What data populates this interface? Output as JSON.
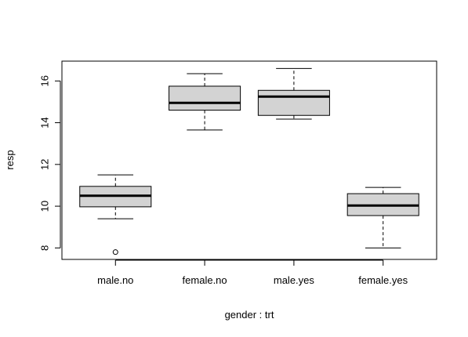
{
  "chart_data": {
    "type": "boxplot",
    "title": "",
    "xlabel": "gender : trt",
    "ylabel": "resp",
    "categories": [
      "male.no",
      "female.no",
      "male.yes",
      "female.yes"
    ],
    "ylim": [
      7.45,
      16.95
    ],
    "yticks": [
      8,
      10,
      12,
      14,
      16
    ],
    "grid": false,
    "box_fill": "#d3d3d3",
    "boxes": [
      {
        "name": "male.no",
        "whisker_low": 9.4,
        "q1": 9.97,
        "median": 10.5,
        "q3": 10.95,
        "whisker_high": 11.5,
        "outliers": [
          7.8
        ]
      },
      {
        "name": "female.no",
        "whisker_low": 13.65,
        "q1": 14.6,
        "median": 14.95,
        "q3": 15.75,
        "whisker_high": 16.35,
        "outliers": []
      },
      {
        "name": "male.yes",
        "whisker_low": 14.17,
        "q1": 14.35,
        "median": 15.25,
        "q3": 15.55,
        "whisker_high": 16.6,
        "outliers": []
      },
      {
        "name": "female.yes",
        "whisker_low": 8.0,
        "q1": 9.55,
        "median": 10.03,
        "q3": 10.6,
        "whisker_high": 10.9,
        "outliers": []
      }
    ]
  }
}
